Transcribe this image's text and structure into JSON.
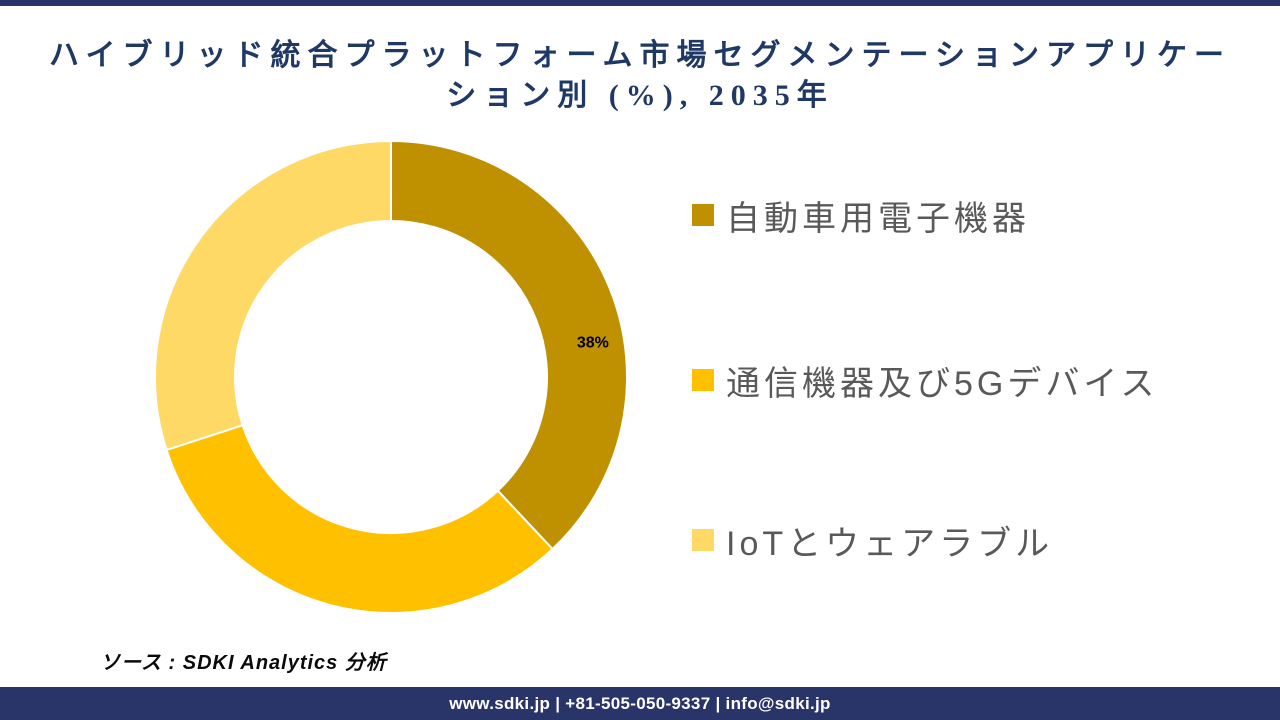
{
  "page": {
    "background": "#ffffff",
    "accent_navy": "#293469"
  },
  "title": {
    "line1": "ハイブリッド統合プラットフォーム市場セグメンテーションアプリケー",
    "line2": "ション別 (%), 2035年",
    "color": "#1F3864"
  },
  "chart_data": {
    "type": "pie",
    "subtype": "donut",
    "title": "ハイブリッド統合プラットフォーム市場セグメンテーションアプリケーション別 (%), 2035年",
    "unit": "%",
    "year": "2035年",
    "direction": "clockwise",
    "start_angle_deg": 0,
    "legend_position": "right",
    "segments": [
      {
        "label": "自動車用電子機器",
        "value": 38,
        "color": "#BF9000",
        "data_label": "38%"
      },
      {
        "label": "通信機器及び5Gデバイス",
        "value": 32,
        "color": "#FFC000",
        "data_label": ""
      },
      {
        "label": "IoTとウェアラブル",
        "value": 30,
        "color": "#FFD966",
        "data_label": ""
      }
    ]
  },
  "legend": {
    "text_color": "#595959",
    "items": [
      {
        "label": "自動車用電子機器"
      },
      {
        "label": "通信機器及び5Gデバイス"
      },
      {
        "label": "IoTとウェアラブル"
      }
    ]
  },
  "source": {
    "text": "ソース : SDKI Analytics 分析"
  },
  "footer": {
    "background": "#293469",
    "text": "www.sdki.jp | +81-505-050-9337 | info@sdki.jp"
  }
}
